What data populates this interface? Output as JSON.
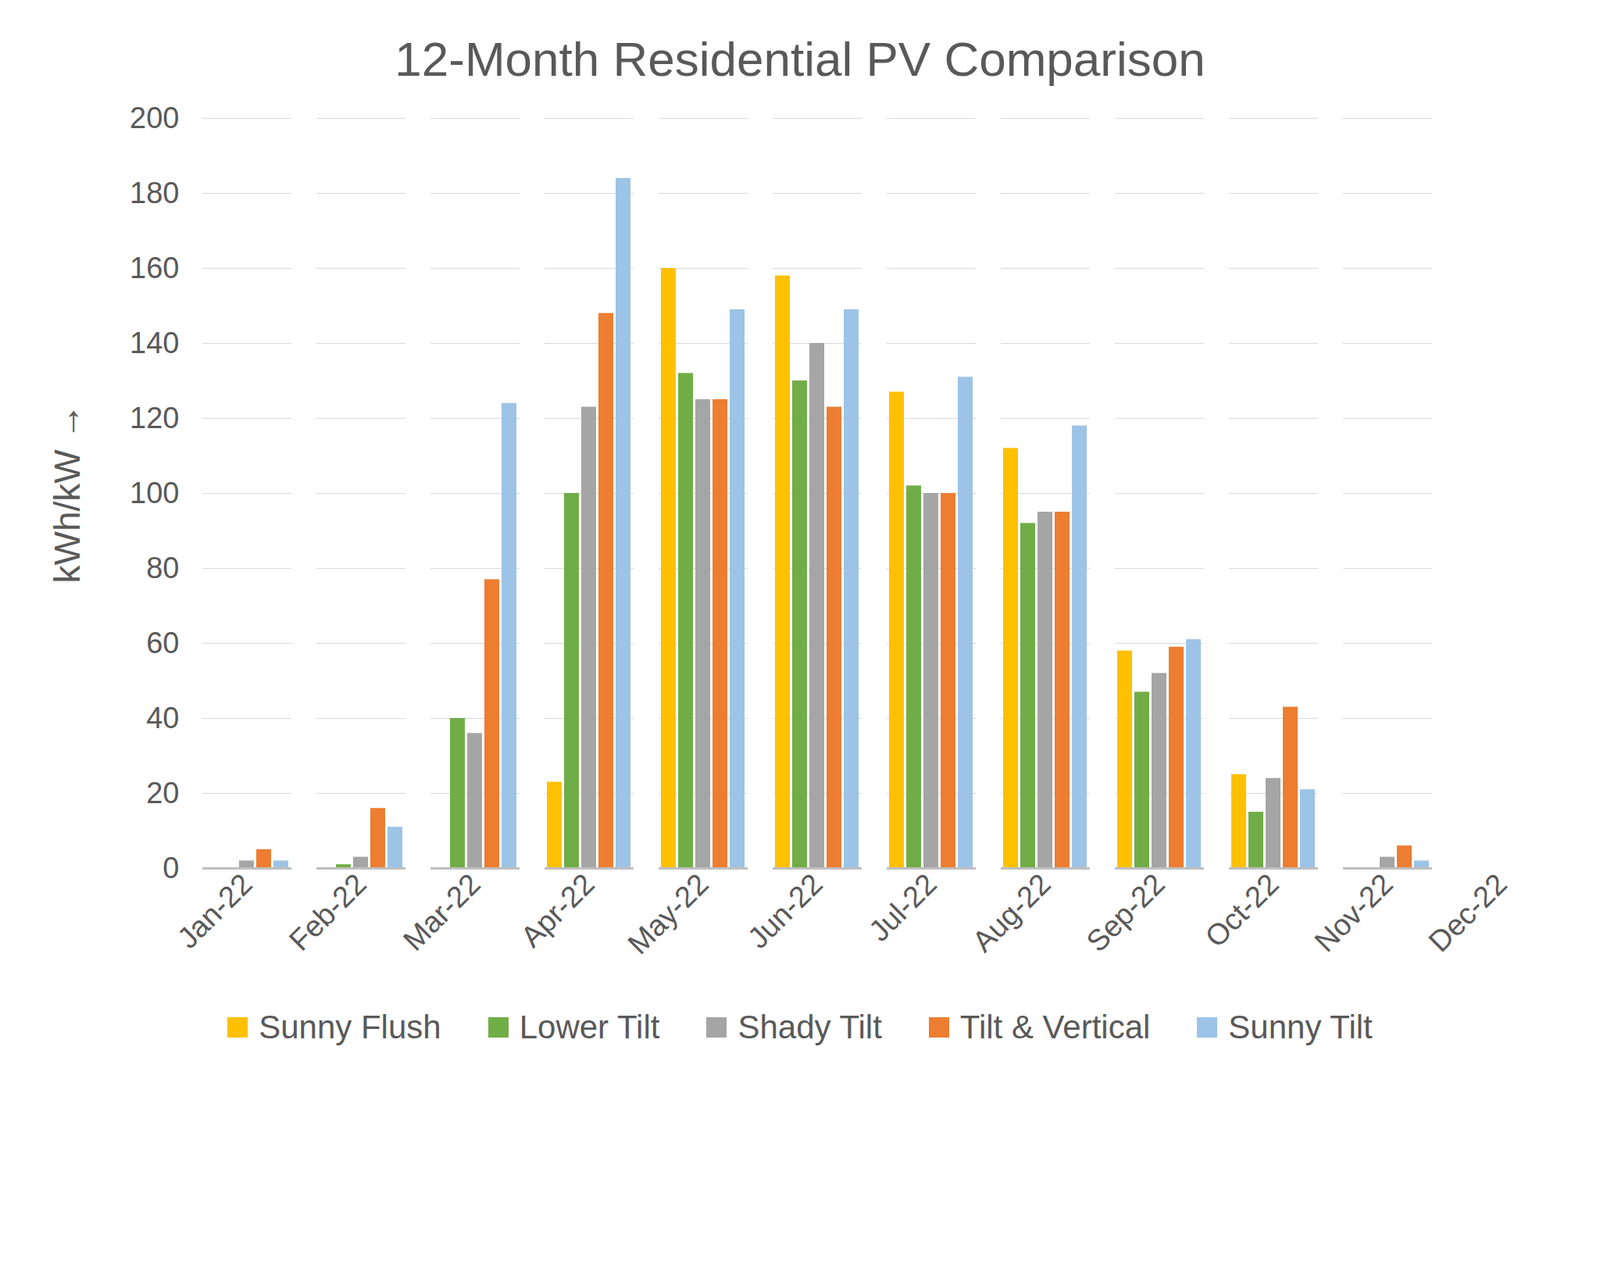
{
  "chart_data": {
    "type": "bar",
    "title": "12-Month Residential PV Comparison",
    "y_label": "kWh/kW",
    "categories": [
      "Jan-22",
      "Feb-22",
      "Mar-22",
      "Apr-22",
      "May-22",
      "Jun-22",
      "Jul-22",
      "Aug-22",
      "Sep-22",
      "Oct-22",
      "Nov-22",
      "Dec-22"
    ],
    "series": [
      {
        "name": "Sunny Flush",
        "color": "#FFC000",
        "values": [
          null,
          null,
          null,
          23,
          160,
          158,
          127,
          112,
          58,
          25,
          null,
          null
        ]
      },
      {
        "name": "Lower Tilt",
        "color": "#70AD47",
        "values": [
          null,
          1,
          40,
          100,
          132,
          130,
          102,
          92,
          47,
          15,
          null,
          null
        ]
      },
      {
        "name": "Shady Tilt",
        "color": "#A5A5A5",
        "values": [
          2,
          3,
          36,
          123,
          125,
          140,
          100,
          95,
          52,
          24,
          3,
          null
        ]
      },
      {
        "name": "Tilt & Vertical",
        "color": "#ED7D31",
        "values": [
          5,
          16,
          77,
          148,
          125,
          123,
          100,
          95,
          59,
          43,
          6,
          null
        ]
      },
      {
        "name": "Sunny Tilt",
        "color": "#9DC3E6",
        "values": [
          2,
          11,
          124,
          184,
          149,
          149,
          131,
          118,
          61,
          21,
          2,
          null
        ]
      }
    ],
    "ylim": [
      0,
      200
    ],
    "yticks": [
      0,
      20,
      40,
      60,
      80,
      100,
      120,
      140,
      160,
      180,
      200
    ],
    "grid": true,
    "legend": "bottom"
  }
}
